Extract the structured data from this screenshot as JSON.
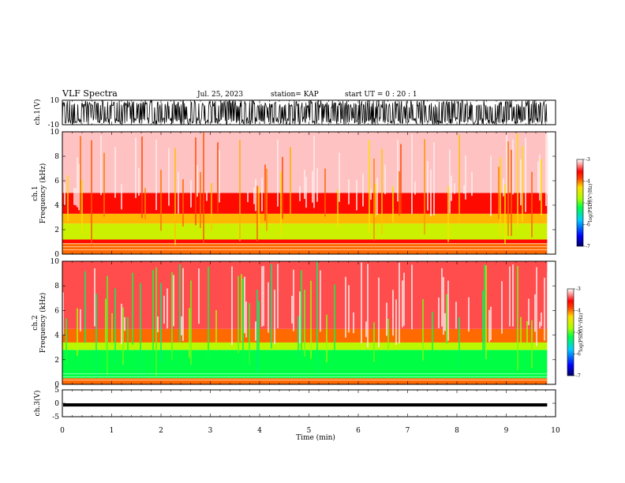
{
  "header": {
    "title": "VLF Spectra",
    "date": "Jul. 25, 2023",
    "station": "station= KAP",
    "start": "start UT =  0 : 20 : 1"
  },
  "chart_data": [
    {
      "type": "line",
      "panel": "ch1-waveform",
      "ylabel": "ch.1(V)",
      "ylim": [
        -10,
        10
      ],
      "yticks": [
        "10",
        "-10"
      ],
      "xlim": [
        0,
        10
      ],
      "trace_color": "#000000",
      "description_values": {
        "x_end_min": 9.83,
        "amplitude_min_V": -10,
        "amplitude_max_V": 10
      }
    },
    {
      "type": "heatmap",
      "panel": "ch1-spectrogram",
      "ylabel_line1": "ch.1",
      "ylabel_line2": "Frequency (kHz)",
      "ylim": [
        0,
        10
      ],
      "yticks": [
        "0",
        "2",
        "4",
        "6",
        "8",
        "10"
      ],
      "xlim": [
        0,
        10
      ],
      "x_end_min": 9.83,
      "frequency_bands_kHz": [
        {
          "from": 0.0,
          "to": 0.9,
          "logPSD": -4.0
        },
        {
          "from": 0.9,
          "to": 1.2,
          "logPSD": -3.6
        },
        {
          "from": 1.2,
          "to": 2.5,
          "logPSD": -4.6
        },
        {
          "from": 2.5,
          "to": 3.3,
          "logPSD": -4.2
        },
        {
          "from": 3.3,
          "to": 5.0,
          "logPSD": -3.6
        },
        {
          "from": 5.0,
          "to": 10.0,
          "logPSD": -3.15
        }
      ],
      "colorbar": {
        "label": "log(PSD)(V²/Hz)",
        "min": -7,
        "max": -3,
        "ticks": [
          "-3",
          "-4",
          "-5",
          "-6",
          "-7"
        ]
      }
    },
    {
      "type": "heatmap",
      "panel": "ch2-spectrogram",
      "ylabel_line1": "ch.2",
      "ylabel_line2": "Frequency (kHz)",
      "ylim": [
        0,
        10
      ],
      "yticks": [
        "0",
        "2",
        "4",
        "6",
        "8",
        "10"
      ],
      "xlim": [
        0,
        10
      ],
      "x_end_min": 9.83,
      "frequency_bands_kHz": [
        {
          "from": 0.0,
          "to": 0.5,
          "logPSD": -4.0
        },
        {
          "from": 0.5,
          "to": 2.8,
          "logPSD": -5.2
        },
        {
          "from": 2.8,
          "to": 3.4,
          "logPSD": -4.7
        },
        {
          "from": 3.4,
          "to": 4.5,
          "logPSD": -4.0
        },
        {
          "from": 4.5,
          "to": 10.0,
          "logPSD": -3.4
        }
      ],
      "colorbar": {
        "label": "log(PSD)(V²/Hz)",
        "min": -7,
        "max": -3,
        "ticks": [
          "-3",
          "-4",
          "-5",
          "-6",
          "-7"
        ]
      }
    },
    {
      "type": "line",
      "panel": "ch3-waveform",
      "ylabel": "ch.3(V)",
      "ylim": [
        -5,
        5
      ],
      "yticks": [
        "5",
        "0",
        "-5"
      ],
      "xlim": [
        0,
        10
      ],
      "x_end_min": 9.83,
      "trace_center_V": -0.6,
      "trace_halfwidth_V": 0.6,
      "xlabel": "Time (min)",
      "xticks": [
        "0",
        "1",
        "2",
        "3",
        "4",
        "5",
        "6",
        "7",
        "8",
        "9",
        "10"
      ]
    }
  ],
  "colors": {
    "colormap": [
      "#000099",
      "#0000ff",
      "#00aaff",
      "#00ff88",
      "#66ff00",
      "#ffee00",
      "#ff8800",
      "#ff0000",
      "#ffaaaa",
      "#ffffff"
    ]
  }
}
